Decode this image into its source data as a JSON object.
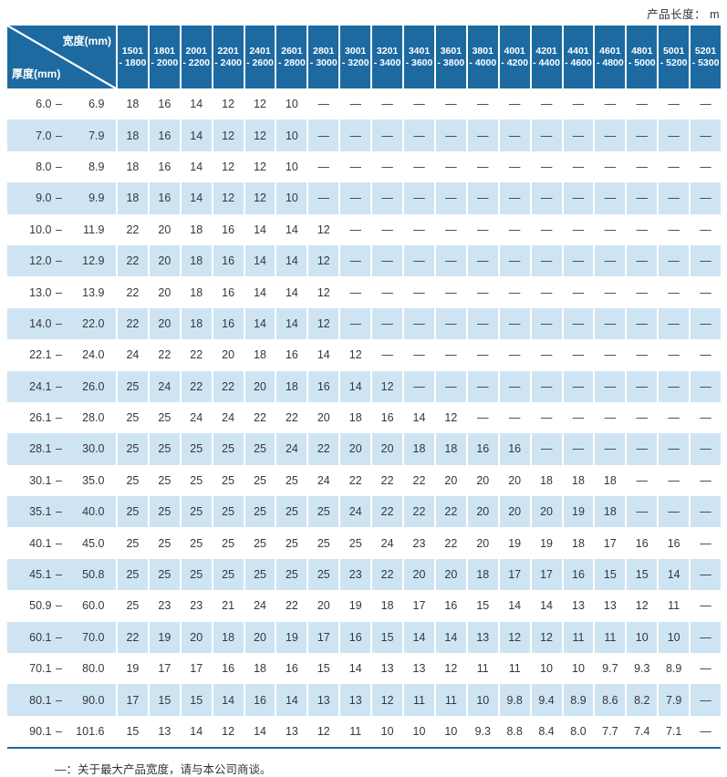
{
  "page": {
    "unit_note": "产品长度： m",
    "footnote": "—：关于最大产品宽度，请与本公司商谈。"
  },
  "colors": {
    "header_blue": "#1d6aa1",
    "alt_row_blue": "#cfe4f3",
    "value_text": "#33383c",
    "header_text": "#ffffff"
  },
  "table": {
    "corner": {
      "top_label": "宽度(mm)",
      "bottom_label": "厚度(mm)"
    },
    "range_separator": "–",
    "dash": "—",
    "columns": [
      {
        "r1": "1501",
        "r2": "- 1800"
      },
      {
        "r1": "1801",
        "r2": "- 2000"
      },
      {
        "r1": "2001",
        "r2": "- 2200"
      },
      {
        "r1": "2201",
        "r2": "- 2400"
      },
      {
        "r1": "2401",
        "r2": "- 2600"
      },
      {
        "r1": "2601",
        "r2": "- 2800"
      },
      {
        "r1": "2801",
        "r2": "- 3000"
      },
      {
        "r1": "3001",
        "r2": "- 3200"
      },
      {
        "r1": "3201",
        "r2": "- 3400"
      },
      {
        "r1": "3401",
        "r2": "- 3600"
      },
      {
        "r1": "3601",
        "r2": "- 3800"
      },
      {
        "r1": "3801",
        "r2": "- 4000"
      },
      {
        "r1": "4001",
        "r2": "- 4200"
      },
      {
        "r1": "4201",
        "r2": "- 4400"
      },
      {
        "r1": "4401",
        "r2": "- 4600"
      },
      {
        "r1": "4601",
        "r2": "- 4800"
      },
      {
        "r1": "4801",
        "r2": "- 5000"
      },
      {
        "r1": "5001",
        "r2": "- 5200"
      },
      {
        "r1": "5201",
        "r2": "- 5300"
      }
    ],
    "rows": [
      {
        "min": "6.0",
        "max": "6.9",
        "values": [
          "18",
          "16",
          "14",
          "12",
          "12",
          "10",
          "—",
          "—",
          "—",
          "—",
          "—",
          "—",
          "—",
          "—",
          "—",
          "—",
          "—",
          "—",
          "—"
        ]
      },
      {
        "min": "7.0",
        "max": "7.9",
        "values": [
          "18",
          "16",
          "14",
          "12",
          "12",
          "10",
          "—",
          "—",
          "—",
          "—",
          "—",
          "—",
          "—",
          "—",
          "—",
          "—",
          "—",
          "—",
          "—"
        ]
      },
      {
        "min": "8.0",
        "max": "8.9",
        "values": [
          "18",
          "16",
          "14",
          "12",
          "12",
          "10",
          "—",
          "—",
          "—",
          "—",
          "—",
          "—",
          "—",
          "—",
          "—",
          "—",
          "—",
          "—",
          "—"
        ]
      },
      {
        "min": "9.0",
        "max": "9.9",
        "values": [
          "18",
          "16",
          "14",
          "12",
          "12",
          "10",
          "—",
          "—",
          "—",
          "—",
          "—",
          "—",
          "—",
          "—",
          "—",
          "—",
          "—",
          "—",
          "—"
        ]
      },
      {
        "min": "10.0",
        "max": "11.9",
        "values": [
          "22",
          "20",
          "18",
          "16",
          "14",
          "14",
          "12",
          "—",
          "—",
          "—",
          "—",
          "—",
          "—",
          "—",
          "—",
          "—",
          "—",
          "—",
          "—"
        ]
      },
      {
        "min": "12.0",
        "max": "12.9",
        "values": [
          "22",
          "20",
          "18",
          "16",
          "14",
          "14",
          "12",
          "—",
          "—",
          "—",
          "—",
          "—",
          "—",
          "—",
          "—",
          "—",
          "—",
          "—",
          "—"
        ]
      },
      {
        "min": "13.0",
        "max": "13.9",
        "values": [
          "22",
          "20",
          "18",
          "16",
          "14",
          "14",
          "12",
          "—",
          "—",
          "—",
          "—",
          "—",
          "—",
          "—",
          "—",
          "—",
          "—",
          "—",
          "—"
        ]
      },
      {
        "min": "14.0",
        "max": "22.0",
        "values": [
          "22",
          "20",
          "18",
          "16",
          "14",
          "14",
          "12",
          "—",
          "—",
          "—",
          "—",
          "—",
          "—",
          "—",
          "—",
          "—",
          "—",
          "—",
          "—"
        ]
      },
      {
        "min": "22.1",
        "max": "24.0",
        "values": [
          "24",
          "22",
          "22",
          "20",
          "18",
          "16",
          "14",
          "12",
          "—",
          "—",
          "—",
          "—",
          "—",
          "—",
          "—",
          "—",
          "—",
          "—",
          "—"
        ]
      },
      {
        "min": "24.1",
        "max": "26.0",
        "values": [
          "25",
          "24",
          "22",
          "22",
          "20",
          "18",
          "16",
          "14",
          "12",
          "—",
          "—",
          "—",
          "—",
          "—",
          "—",
          "—",
          "—",
          "—",
          "—"
        ]
      },
      {
        "min": "26.1",
        "max": "28.0",
        "values": [
          "25",
          "25",
          "24",
          "24",
          "22",
          "22",
          "20",
          "18",
          "16",
          "14",
          "12",
          "—",
          "—",
          "—",
          "—",
          "—",
          "—",
          "—",
          "—"
        ]
      },
      {
        "min": "28.1",
        "max": "30.0",
        "values": [
          "25",
          "25",
          "25",
          "25",
          "25",
          "24",
          "22",
          "20",
          "20",
          "18",
          "18",
          "16",
          "16",
          "—",
          "—",
          "—",
          "—",
          "—",
          "—"
        ]
      },
      {
        "min": "30.1",
        "max": "35.0",
        "values": [
          "25",
          "25",
          "25",
          "25",
          "25",
          "25",
          "24",
          "22",
          "22",
          "22",
          "20",
          "20",
          "20",
          "18",
          "18",
          "18",
          "—",
          "—",
          "—"
        ]
      },
      {
        "min": "35.1",
        "max": "40.0",
        "values": [
          "25",
          "25",
          "25",
          "25",
          "25",
          "25",
          "25",
          "24",
          "22",
          "22",
          "22",
          "20",
          "20",
          "20",
          "19",
          "18",
          "—",
          "—",
          "—"
        ]
      },
      {
        "min": "40.1",
        "max": "45.0",
        "values": [
          "25",
          "25",
          "25",
          "25",
          "25",
          "25",
          "25",
          "25",
          "24",
          "23",
          "22",
          "20",
          "19",
          "19",
          "18",
          "17",
          "16",
          "16",
          "—"
        ]
      },
      {
        "min": "45.1",
        "max": "50.8",
        "values": [
          "25",
          "25",
          "25",
          "25",
          "25",
          "25",
          "25",
          "23",
          "22",
          "20",
          "20",
          "18",
          "17",
          "17",
          "16",
          "15",
          "15",
          "14",
          "—"
        ]
      },
      {
        "min": "50.9",
        "max": "60.0",
        "values": [
          "25",
          "23",
          "23",
          "21",
          "24",
          "22",
          "20",
          "19",
          "18",
          "17",
          "16",
          "15",
          "14",
          "14",
          "13",
          "13",
          "12",
          "11",
          "—"
        ]
      },
      {
        "min": "60.1",
        "max": "70.0",
        "values": [
          "22",
          "19",
          "20",
          "18",
          "20",
          "19",
          "17",
          "16",
          "15",
          "14",
          "14",
          "13",
          "12",
          "12",
          "11",
          "11",
          "10",
          "10",
          "—"
        ]
      },
      {
        "min": "70.1",
        "max": "80.0",
        "values": [
          "19",
          "17",
          "17",
          "16",
          "18",
          "16",
          "15",
          "14",
          "13",
          "13",
          "12",
          "11",
          "11",
          "10",
          "10",
          "9.7",
          "9.3",
          "8.9",
          "—"
        ]
      },
      {
        "min": "80.1",
        "max": "90.0",
        "values": [
          "17",
          "15",
          "15",
          "14",
          "16",
          "14",
          "13",
          "13",
          "12",
          "11",
          "11",
          "10",
          "9.8",
          "9.4",
          "8.9",
          "8.6",
          "8.2",
          "7.9",
          "—"
        ]
      },
      {
        "min": "90.1",
        "max": "101.6",
        "values": [
          "15",
          "13",
          "14",
          "12",
          "14",
          "13",
          "12",
          "11",
          "10",
          "10",
          "10",
          "9.3",
          "8.8",
          "8.4",
          "8.0",
          "7.7",
          "7.4",
          "7.1",
          "—"
        ]
      }
    ]
  }
}
